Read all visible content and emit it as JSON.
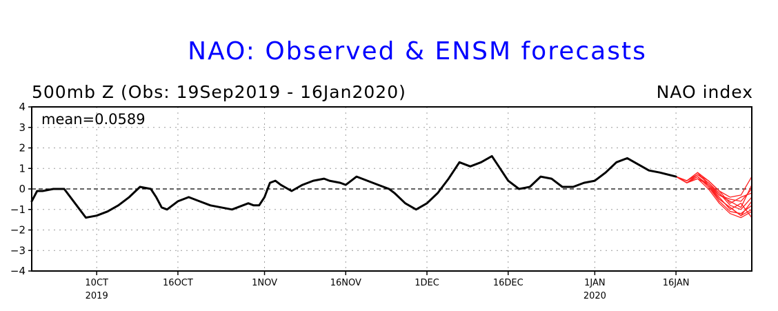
{
  "chart_data": {
    "type": "line",
    "title": "NAO: Observed & ENSM forecasts",
    "subtitle": "500mb Z (Obs: 19Sep2019 - 16Jan2020)",
    "index_label": "NAO index",
    "annotation": "mean=0.0589",
    "ylim": [
      -4,
      4
    ],
    "yticks": [
      "4",
      "3",
      "2",
      "1",
      "0",
      "−1",
      "−2",
      "−3",
      "−4"
    ],
    "xlim": [
      "2019-09-19",
      "2020-01-30"
    ],
    "xticks": [
      {
        "date": "2019-10-01",
        "label": "10CT",
        "year": "2019"
      },
      {
        "date": "2019-10-16",
        "label": "16OCT",
        "year": ""
      },
      {
        "date": "2019-11-01",
        "label": "1NOV",
        "year": ""
      },
      {
        "date": "2019-11-16",
        "label": "16NOV",
        "year": ""
      },
      {
        "date": "2019-12-01",
        "label": "1DEC",
        "year": ""
      },
      {
        "date": "2019-12-16",
        "label": "16DEC",
        "year": ""
      },
      {
        "date": "2020-01-01",
        "label": "1JAN",
        "year": "2020"
      },
      {
        "date": "2020-01-16",
        "label": "16JAN",
        "year": ""
      }
    ],
    "grid": true,
    "zero_line": "dashed",
    "observed": {
      "color": "#000000",
      "x": [
        "2019-09-19",
        "2019-09-20",
        "2019-09-21",
        "2019-09-23",
        "2019-09-25",
        "2019-09-27",
        "2019-09-29",
        "2019-10-01",
        "2019-10-02",
        "2019-10-03",
        "2019-10-05",
        "2019-10-07",
        "2019-10-09",
        "2019-10-11",
        "2019-10-12",
        "2019-10-13",
        "2019-10-14",
        "2019-10-15",
        "2019-10-16",
        "2019-10-17",
        "2019-10-18",
        "2019-10-20",
        "2019-10-22",
        "2019-10-24",
        "2019-10-26",
        "2019-10-28",
        "2019-10-29",
        "2019-10-30",
        "2019-10-31",
        "2019-11-01",
        "2019-11-02",
        "2019-11-03",
        "2019-11-04",
        "2019-11-06",
        "2019-11-08",
        "2019-11-10",
        "2019-11-12",
        "2019-11-13",
        "2019-11-15",
        "2019-11-16",
        "2019-11-18",
        "2019-11-20",
        "2019-11-22",
        "2019-11-24",
        "2019-11-25",
        "2019-11-27",
        "2019-11-29",
        "2019-12-01",
        "2019-12-03",
        "2019-12-05",
        "2019-12-07",
        "2019-12-09",
        "2019-12-11",
        "2019-12-13",
        "2019-12-14",
        "2019-12-16",
        "2019-12-18",
        "2019-12-20",
        "2019-12-22",
        "2019-12-24",
        "2019-12-26",
        "2019-12-28",
        "2019-12-30",
        "2020-01-01",
        "2020-01-03",
        "2020-01-05",
        "2020-01-07",
        "2020-01-09",
        "2020-01-11",
        "2020-01-13",
        "2020-01-16"
      ],
      "y": [
        -0.6,
        -0.1,
        -0.1,
        0.0,
        0.0,
        -0.7,
        -1.4,
        -1.3,
        -1.2,
        -1.1,
        -0.8,
        -0.4,
        0.1,
        0.0,
        -0.4,
        -0.9,
        -1.0,
        -0.8,
        -0.6,
        -0.5,
        -0.4,
        -0.6,
        -0.8,
        -0.9,
        -1.0,
        -0.8,
        -0.7,
        -0.8,
        -0.8,
        -0.4,
        0.3,
        0.4,
        0.2,
        -0.1,
        0.2,
        0.4,
        0.5,
        0.4,
        0.3,
        0.2,
        0.6,
        0.4,
        0.2,
        0.0,
        -0.2,
        -0.7,
        -1.0,
        -0.7,
        -0.2,
        0.5,
        1.3,
        1.1,
        1.3,
        1.6,
        1.2,
        0.4,
        0.0,
        0.1,
        0.6,
        0.5,
        0.1,
        0.1,
        0.3,
        0.4,
        0.8,
        1.3,
        1.5,
        1.2,
        0.9,
        0.8,
        0.6
      ]
    },
    "forecast": {
      "color": "#ff2020",
      "members": 10,
      "x": [
        "2020-01-16",
        "2020-01-18",
        "2020-01-20",
        "2020-01-22",
        "2020-01-24",
        "2020-01-26",
        "2020-01-28",
        "2020-01-30"
      ],
      "y_spread": [
        [
          0.6,
          0.3,
          0.6,
          0.1,
          -0.5,
          -0.9,
          -1.3,
          -0.6
        ],
        [
          0.6,
          0.3,
          0.7,
          0.3,
          -0.3,
          -0.6,
          -0.9,
          0.2
        ],
        [
          0.6,
          0.4,
          0.8,
          0.4,
          -0.1,
          -0.4,
          -0.3,
          0.6
        ],
        [
          0.6,
          0.3,
          0.5,
          0.0,
          -0.7,
          -1.2,
          -1.4,
          -1.1
        ],
        [
          0.6,
          0.4,
          0.7,
          0.3,
          -0.2,
          -0.8,
          -1.0,
          -0.4
        ],
        [
          0.6,
          0.3,
          0.6,
          0.2,
          -0.4,
          -1.0,
          -0.7,
          -1.4
        ],
        [
          0.6,
          0.4,
          0.8,
          0.2,
          -0.3,
          -0.5,
          -0.6,
          0.0
        ],
        [
          0.6,
          0.3,
          0.6,
          0.1,
          -0.6,
          -1.1,
          -1.2,
          -0.8
        ],
        [
          0.6,
          0.4,
          0.7,
          0.4,
          -0.1,
          -0.7,
          -0.4,
          -0.2
        ],
        [
          0.6,
          0.3,
          0.5,
          0.2,
          -0.5,
          -0.9,
          -1.3,
          -1.0
        ]
      ]
    }
  }
}
